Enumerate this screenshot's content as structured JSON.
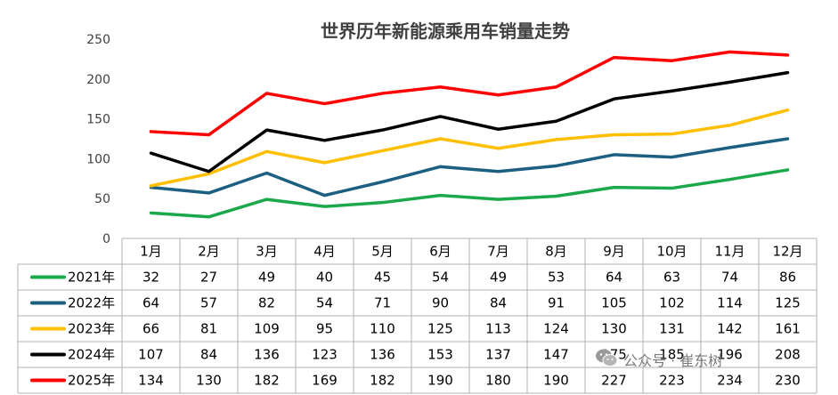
{
  "chart_data": {
    "type": "line",
    "title": "世界历年新能源乘用车销量走势",
    "categories": [
      "1月",
      "2月",
      "3月",
      "4月",
      "5月",
      "6月",
      "7月",
      "8月",
      "9月",
      "10月",
      "11月",
      "12月"
    ],
    "ylim": [
      0,
      250
    ],
    "yticks": [
      0,
      50,
      100,
      150,
      200,
      250
    ],
    "ytick_labels": [
      "0",
      "50",
      "100",
      "150",
      "200",
      "250"
    ],
    "grid": false,
    "legend": "data-table",
    "series": [
      {
        "name": "2021年",
        "color": "#1aa84a",
        "values": [
          32,
          27,
          49,
          40,
          45,
          54,
          49,
          53,
          64,
          63,
          74,
          86
        ]
      },
      {
        "name": "2022年",
        "color": "#1c5f80",
        "values": [
          64,
          57,
          82,
          54,
          71,
          90,
          84,
          91,
          105,
          102,
          114,
          125
        ]
      },
      {
        "name": "2023年",
        "color": "#ffbf00",
        "values": [
          66,
          81,
          109,
          95,
          110,
          125,
          113,
          124,
          130,
          131,
          142,
          161
        ]
      },
      {
        "name": "2024年",
        "color": "#000000",
        "values": [
          107,
          84,
          136,
          123,
          136,
          153,
          137,
          147,
          175,
          185,
          196,
          208
        ]
      },
      {
        "name": "2025年",
        "color": "#ff0000",
        "values": [
          134,
          130,
          182,
          169,
          182,
          190,
          180,
          190,
          227,
          223,
          234,
          230
        ]
      }
    ]
  },
  "watermark": {
    "text": "公众号 · 崔东树",
    "icon": "wechat-icon"
  }
}
